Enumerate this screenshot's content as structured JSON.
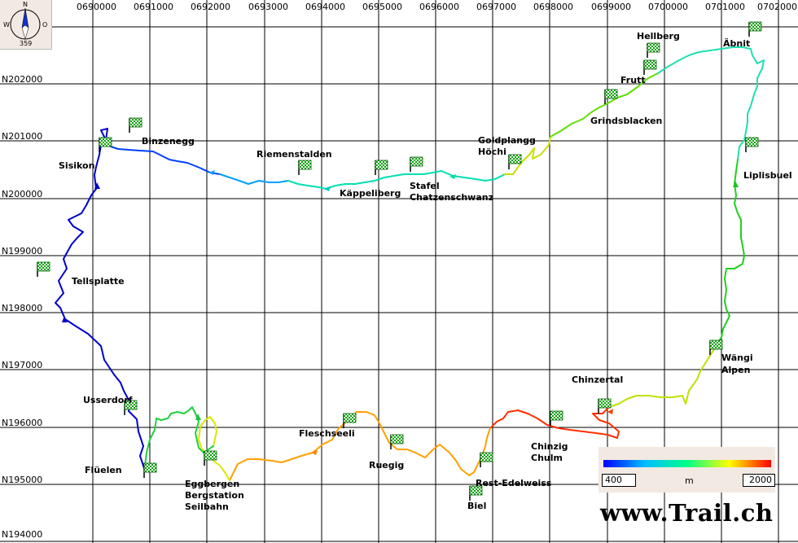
{
  "map": {
    "easting_ticks": [
      "0690000",
      "0691000",
      "0692000",
      "0693000",
      "0694000",
      "0695000",
      "0696000",
      "0697000",
      "0698000",
      "0699000",
      "0700000",
      "0701000",
      "0702000"
    ],
    "northing_ticks": [
      "N202000",
      "N201000",
      "N200000",
      "N199000",
      "N198000",
      "N197000",
      "N196000",
      "N195000",
      "N194000"
    ],
    "waypoints": [
      {
        "name": "Binzenegg",
        "e": 690640,
        "n": 201150
      },
      {
        "name": "Sisikon",
        "e": 690110,
        "n": 200800
      },
      {
        "name": "Riemenstalden",
        "e": 693600,
        "n": 200400
      },
      {
        "name": "Käppeliberg",
        "e": 694940,
        "n": 200400
      },
      {
        "name": "Stafel",
        "e": 695560,
        "n": 200460
      },
      {
        "name": "Chatzenschwanz",
        "e": 695560,
        "n": 200460
      },
      {
        "name": "Goldplangg",
        "e": 697280,
        "n": 200510
      },
      {
        "name": "Höchi",
        "e": 697280,
        "n": 200510
      },
      {
        "name": "Hellberg",
        "e": 699700,
        "n": 202450
      },
      {
        "name": "Frutt",
        "e": 699650,
        "n": 202150
      },
      {
        "name": "Grindsblacken",
        "e": 698960,
        "n": 201650
      },
      {
        "name": "Äbnit",
        "e": 701480,
        "n": 202820
      },
      {
        "name": "Liplisbuel",
        "e": 701430,
        "n": 200810
      },
      {
        "name": "Tellsplatte",
        "e": 689030,
        "n": 198620
      },
      {
        "name": "Usserdorf",
        "e": 690550,
        "n": 196200
      },
      {
        "name": "Flüelen",
        "e": 690900,
        "n": 195100
      },
      {
        "name": "Wängi",
        "e": 700800,
        "n": 197250
      },
      {
        "name": "Alpen",
        "e": 700800,
        "n": 197250
      },
      {
        "name": "Chinzertal",
        "e": 698840,
        "n": 196230
      },
      {
        "name": "Chinzig",
        "e": 698010,
        "n": 196010
      },
      {
        "name": "Chulm",
        "e": 698010,
        "n": 196010
      },
      {
        "name": "Rest-Edelweiss",
        "e": 696780,
        "n": 195290
      },
      {
        "name": "Biel",
        "e": 696600,
        "n": 194700
      },
      {
        "name": "Ruegig",
        "e": 695220,
        "n": 195610
      },
      {
        "name": "Fleschseeli",
        "e": 694390,
        "n": 195980
      },
      {
        "name": "Eggbergen",
        "e": 691950,
        "n": 195320
      },
      {
        "name": "Bergstation",
        "e": 691950,
        "n": 195320
      },
      {
        "name": "Seilbahn",
        "e": 691950,
        "n": 195320
      }
    ]
  },
  "compass": {
    "north": "N",
    "west": "W",
    "east": "O",
    "bearing": "359"
  },
  "legend": {
    "min": "400",
    "max": "2000",
    "unit": "m",
    "colors": [
      "#0000ff",
      "#00bfff",
      "#00ff88",
      "#ffff00",
      "#ff0000"
    ]
  },
  "watermark": "www.Trail.ch"
}
